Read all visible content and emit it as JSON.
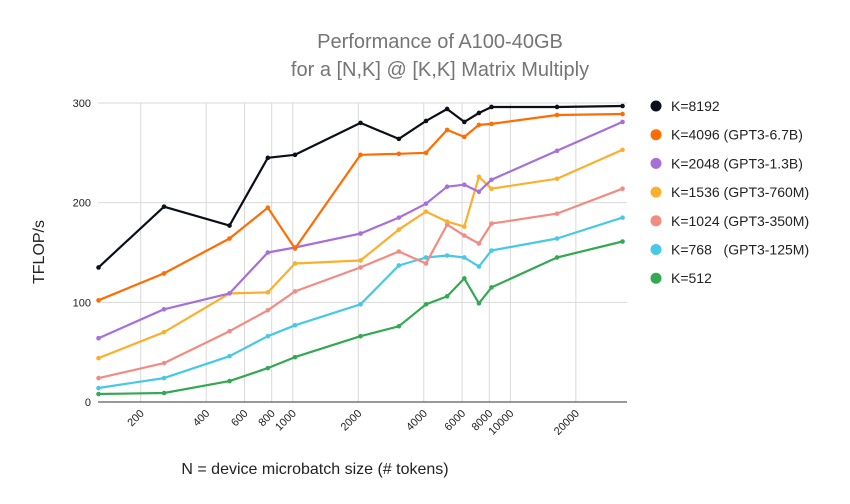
{
  "chart_data": {
    "type": "line",
    "title": [
      "Performance of A100-40GB",
      "for a [N,K] @ [K,K] Matrix Multiply"
    ],
    "xlabel": "N = device microbatch size (# tokens)",
    "ylabel": "TFLOP/s",
    "x_scale": "log",
    "xlim": [
      128,
      32768
    ],
    "ylim": [
      0,
      300
    ],
    "x_ticks": [
      200,
      400,
      600,
      800,
      1000,
      2000,
      4000,
      6000,
      8000,
      10000,
      20000
    ],
    "x_tick_labels": [
      "200",
      "400",
      "600",
      "800",
      "1000",
      "2000",
      "4000",
      "6000",
      "8000",
      "10000",
      "20000"
    ],
    "y_ticks": [
      0,
      100,
      200,
      300
    ],
    "y_tick_labels": [
      "0",
      "100",
      "200",
      "300"
    ],
    "grid": true,
    "legend_position": "right",
    "x": [
      128,
      256,
      512,
      768,
      1024,
      2048,
      3072,
      4096,
      5120,
      6144,
      7168,
      8192,
      16384,
      32768
    ],
    "series": [
      {
        "name": "K=8192",
        "color": "#0b0f1a",
        "values": [
          135,
          196,
          177,
          245,
          248,
          280,
          264,
          282,
          294,
          281,
          290,
          296,
          296,
          297
        ]
      },
      {
        "name": "K=4096 (GPT3-6.7B)",
        "color": "#ff6d01",
        "values": [
          102,
          129,
          164,
          195,
          154,
          248,
          249,
          250,
          273,
          266,
          278,
          279,
          288,
          289
        ]
      },
      {
        "name": "K=2048 (GPT3-1.3B)",
        "color": "#a66fd9",
        "values": [
          64,
          93,
          109,
          150,
          155,
          169,
          185,
          199,
          216,
          218,
          211,
          223,
          252,
          281
        ]
      },
      {
        "name": "K=1536 (GPT3-760M)",
        "color": "#fbb02d",
        "values": [
          44,
          70,
          109,
          110,
          139,
          142,
          173,
          191,
          181,
          176,
          226,
          214,
          224,
          253
        ]
      },
      {
        "name": "K=1024 (GPT3-350M)",
        "color": "#f28b82",
        "values": [
          24,
          39,
          71,
          92,
          111,
          135,
          151,
          139,
          178,
          167,
          159,
          179,
          189,
          214
        ]
      },
      {
        "name": "K=768   (GPT3-125M)",
        "color": "#46c8e6",
        "values": [
          14,
          24,
          46,
          66,
          77,
          98,
          137,
          145,
          147,
          145,
          136,
          152,
          164,
          185
        ]
      },
      {
        "name": "K=512",
        "color": "#34a853",
        "values": [
          8,
          9,
          21,
          34,
          45,
          66,
          76,
          98,
          106,
          124,
          99,
          115,
          145,
          161
        ]
      }
    ]
  }
}
